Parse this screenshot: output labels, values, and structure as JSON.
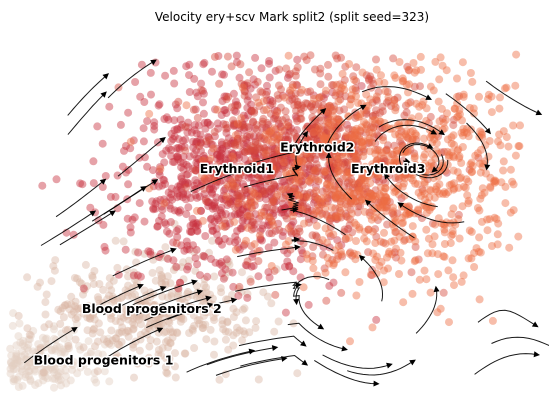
{
  "chart_data": {
    "type": "scatter",
    "title": "Velocity ery+scv Mark split2 (split seed=323)",
    "xlabel": "",
    "ylabel": "",
    "grid": false,
    "axes_visible": false,
    "legend": "none",
    "overlay": "velocity streamlines (black arrows)",
    "clusters": [
      {
        "name": "Blood progenitors 1",
        "color": "#e3cfc0",
        "center": [
          0.0,
          0.0
        ]
      },
      {
        "name": "Blood progenitors 2",
        "color": "#d9b5a5",
        "center": [
          0.25,
          0.17
        ]
      },
      {
        "name": "Erythroid1",
        "color": "#c8303f",
        "center": [
          0.43,
          0.63
        ]
      },
      {
        "name": "Erythroid2",
        "color": "#d44a3b",
        "center": [
          0.6,
          0.7
        ]
      },
      {
        "name": "Erythroid3",
        "color": "#ee6d43",
        "center": [
          0.75,
          0.63
        ]
      }
    ],
    "xlim": [
      -0.05,
      1.05
    ],
    "ylim": [
      -0.1,
      1.1
    ]
  }
}
